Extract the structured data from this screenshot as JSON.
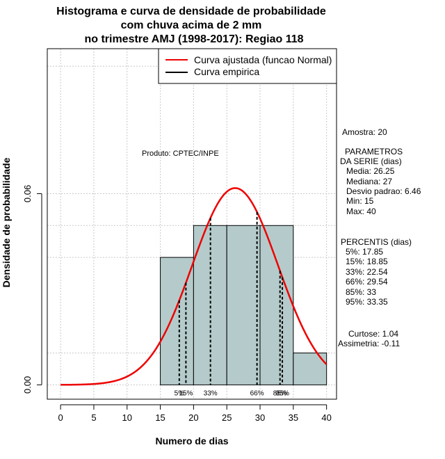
{
  "chart_data": {
    "type": "histogram",
    "title": [
      "Histograma e curva de densidade de probabilidade",
      "com chuva acima de 2 mm",
      "no trimestre AMJ (1998-2017): Regiao 118"
    ],
    "xlabel": "Numero de dias",
    "ylabel": "Densidade de probabilidade",
    "xlim": [
      -2,
      41.5
    ],
    "ylim": [
      -0.0045,
      0.1055
    ],
    "x_ticks": [
      0,
      5,
      10,
      15,
      20,
      25,
      30,
      35,
      40
    ],
    "y_ticks": [
      0.0,
      0.06
    ],
    "y_tick_labels": [
      "0.00",
      "0.06"
    ],
    "grid": true,
    "bins": [
      {
        "from": 15,
        "to": 20,
        "density": 0.04
      },
      {
        "from": 20,
        "to": 25,
        "density": 0.05
      },
      {
        "from": 25,
        "to": 30,
        "density": 0.05
      },
      {
        "from": 30,
        "to": 35,
        "density": 0.05
      },
      {
        "from": 35,
        "to": 40,
        "density": 0.01
      }
    ],
    "bar_color": "#b5cbcb",
    "normal_fit": {
      "mean": 26.25,
      "sd": 6.46,
      "x_from": 0,
      "x_to": 40,
      "color": "#ee0000"
    },
    "percentile_lines": [
      {
        "label": "5%",
        "value": 17.85
      },
      {
        "label": "15%",
        "value": 18.85
      },
      {
        "label": "33%",
        "value": 22.54
      },
      {
        "label": "66%",
        "value": 29.54
      },
      {
        "label": "85%",
        "value": 33
      },
      {
        "label": "95%",
        "value": 33.35
      }
    ],
    "legend": [
      {
        "label": "Curva ajustada (funcao Normal)",
        "color": "#ee0000"
      },
      {
        "label": "Curva empirica",
        "color": "#000000"
      }
    ],
    "legend_position": "top-right",
    "annotation": "Produto: CPTEC/INPE"
  },
  "stats": {
    "amostra": "Amostra: 20",
    "param_title1": "PARAMETROS",
    "param_title2": "DA SERIE (dias)",
    "media": "Media: 26.25",
    "mediana": "Mediana: 27",
    "desvio": "Desvio padrao: 6.46",
    "min": "Min: 15",
    "max": "Max: 40",
    "percentis_title": "PERCENTIS (dias)",
    "p5": "5%: 17.85",
    "p15": "15%: 18.85",
    "p33": "33%: 22.54",
    "p66": "66%: 29.54",
    "p85": "85%: 33",
    "p95": "95%: 33.35",
    "curtose": "Curtose: 1.04",
    "assimetria": "Assimetria: -0.11"
  }
}
